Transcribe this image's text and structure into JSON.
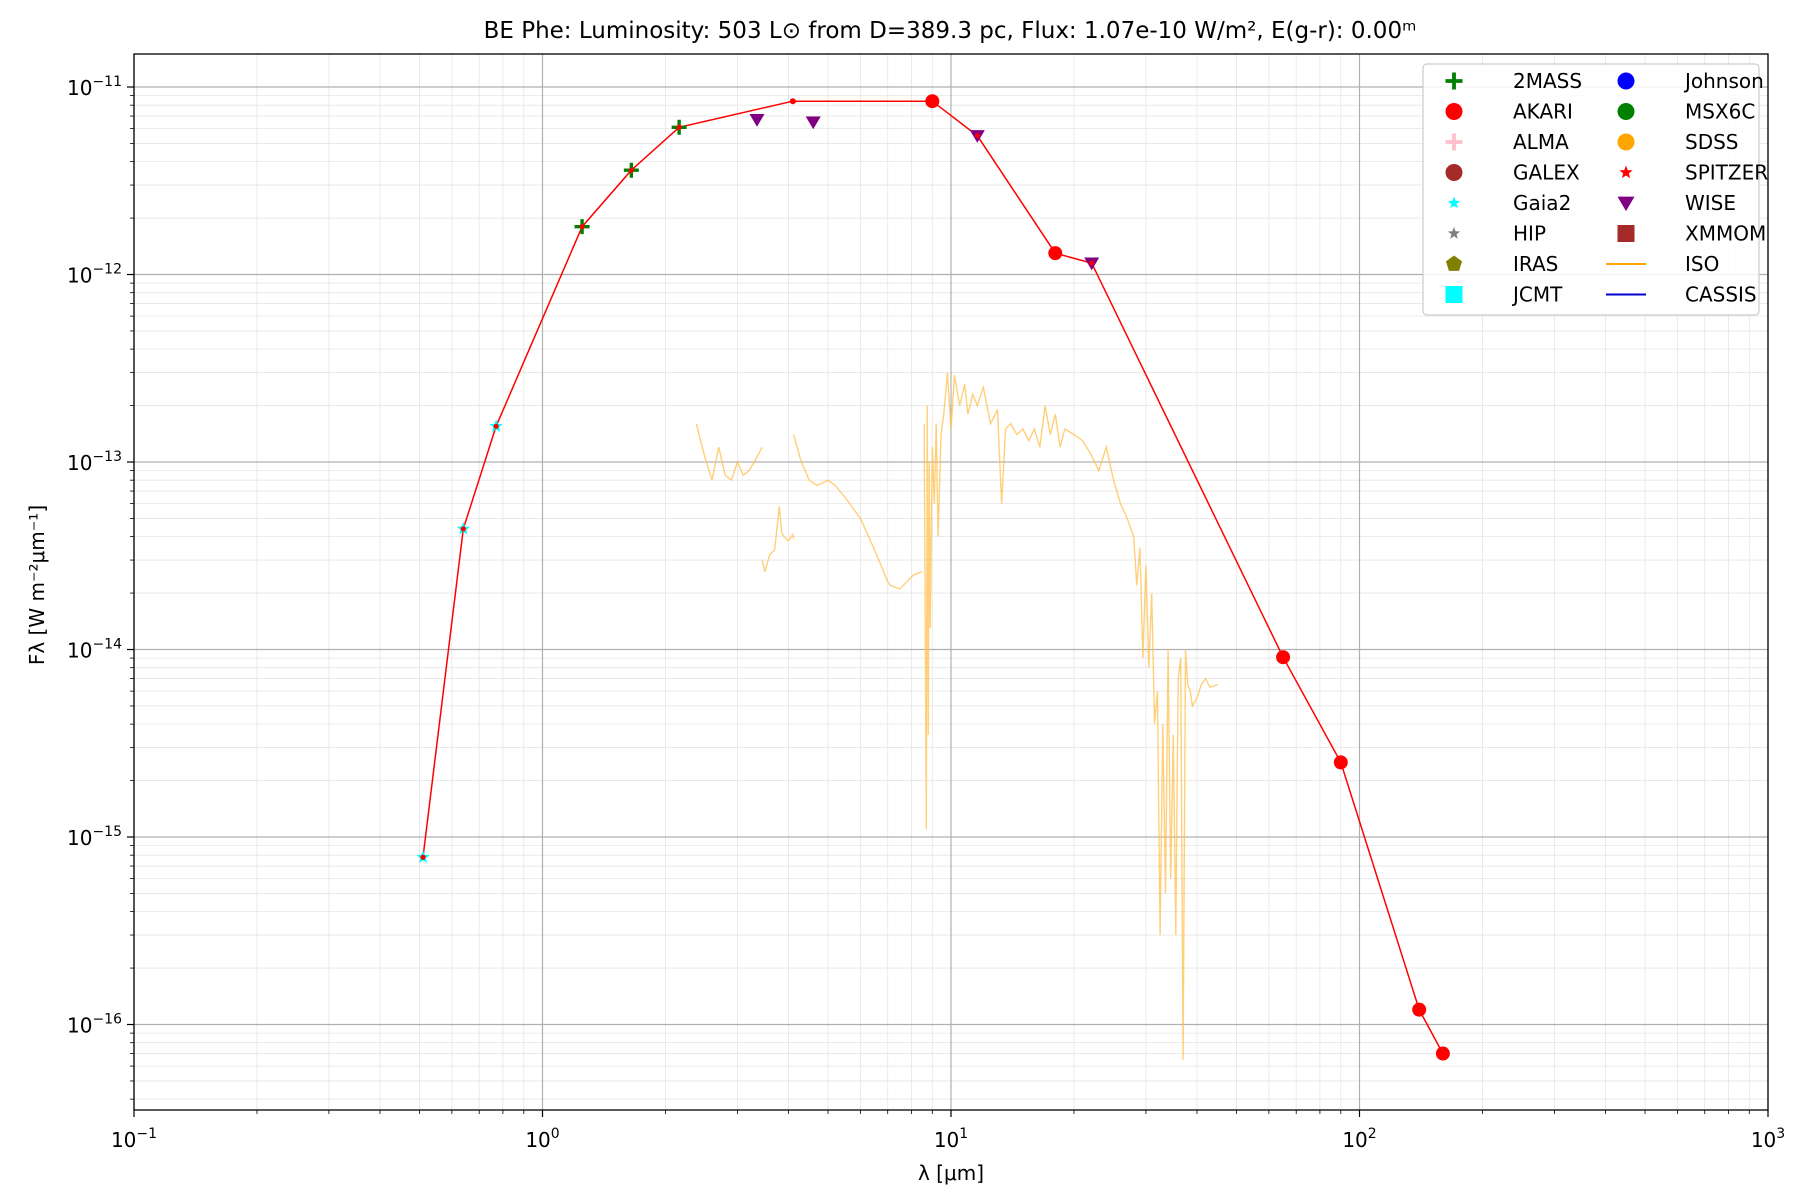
{
  "chart_data": {
    "type": "scatter",
    "title": "BE Phe:  Luminosity: 503 L⊙ from D=389.3 pc, Flux: 1.07e-10 W/m², E(g-r): 0.00ᵐ",
    "xlabel": "λ [μm]",
    "ylabel": "Fλ [W m⁻²μm⁻¹]",
    "xscale": "log",
    "yscale": "log",
    "xlim": [
      0.1,
      1000
    ],
    "ylim": [
      3.5e-17,
      1.5e-11
    ],
    "grid": true,
    "legend_position": "top-right",
    "x_ticks": [
      {
        "value": 0.1,
        "base": "10",
        "exp": "−1"
      },
      {
        "value": 1,
        "base": "10",
        "exp": "0"
      },
      {
        "value": 10,
        "base": "10",
        "exp": "1"
      },
      {
        "value": 100,
        "base": "10",
        "exp": "2"
      },
      {
        "value": 1000,
        "base": "10",
        "exp": "3"
      }
    ],
    "y_ticks": [
      {
        "value": 1e-16,
        "base": "10",
        "exp": "−16"
      },
      {
        "value": 1e-15,
        "base": "10",
        "exp": "−15"
      },
      {
        "value": 1e-14,
        "base": "10",
        "exp": "−14"
      },
      {
        "value": 1e-13,
        "base": "10",
        "exp": "−13"
      },
      {
        "value": 1e-12,
        "base": "10",
        "exp": "−12"
      },
      {
        "value": 1e-11,
        "base": "10",
        "exp": "−11"
      }
    ],
    "sed_line": {
      "color": "#ff0000",
      "x": [
        0.51,
        0.64,
        0.77,
        1.25,
        1.65,
        2.16,
        4.1,
        9.0,
        11.6,
        18.0,
        22.1,
        65.0,
        90.0,
        140.0,
        160.0
      ],
      "y": [
        7.8e-16,
        4.4e-14,
        1.55e-13,
        1.8e-12,
        3.6e-12,
        6.1e-12,
        8.4e-12,
        8.4e-12,
        5.5e-12,
        1.3e-12,
        1.15e-12,
        9.1e-15,
        2.5e-15,
        1.2e-16,
        7e-17
      ]
    },
    "photometry": [
      {
        "survey": "Gaia2",
        "x": [
          0.51,
          0.64,
          0.77
        ],
        "y": [
          7.8e-16,
          4.4e-14,
          1.55e-13
        ]
      },
      {
        "survey": "2MASS",
        "x": [
          1.25,
          1.65,
          2.16
        ],
        "y": [
          1.8e-12,
          3.6e-12,
          6.1e-12
        ]
      },
      {
        "survey": "WISE",
        "x": [
          3.35,
          4.6,
          11.6,
          22.1
        ],
        "y": [
          6.7e-12,
          6.5e-12,
          5.5e-12,
          1.15e-12
        ]
      },
      {
        "survey": "AKARI",
        "x": [
          9.0,
          18.0,
          65.0,
          90.0,
          140.0,
          160.0
        ],
        "y": [
          8.4e-12,
          1.3e-12,
          9.1e-15,
          2.5e-15,
          1.2e-16,
          7e-17
        ]
      },
      {
        "survey": "other",
        "x": [
          4.1
        ],
        "y": [
          8.4e-12
        ]
      }
    ],
    "iso_spectrum": {
      "color": "#ffc04d",
      "segments": [
        {
          "x": [
            2.38,
            2.5,
            2.6,
            2.7,
            2.8,
            2.9,
            3.0,
            3.1,
            3.2,
            3.3,
            3.45
          ],
          "y": [
            1.6e-13,
            1.05e-13,
            8e-14,
            1.2e-13,
            8.5e-14,
            8e-14,
            1e-13,
            8.5e-14,
            9e-14,
            1e-13,
            1.2e-13
          ]
        },
        {
          "x": [
            3.45,
            3.5,
            3.6,
            3.7,
            3.8,
            3.85,
            3.9,
            4.0,
            4.1,
            4.12
          ],
          "y": [
            3e-14,
            2.6e-14,
            3.2e-14,
            3.4e-14,
            5.8e-14,
            4.2e-14,
            4e-14,
            3.8e-14,
            4.1e-14,
            3.9e-14
          ]
        },
        {
          "x": [
            4.12,
            4.3,
            4.5,
            4.7,
            5.0,
            5.2,
            5.5,
            6.0,
            6.5,
            7.0,
            7.1,
            7.5,
            7.8,
            8.1,
            8.5
          ],
          "y": [
            1.4e-13,
            1e-13,
            8e-14,
            7.5e-14,
            8e-14,
            7.5e-14,
            6.5e-14,
            5e-14,
            3.4e-14,
            2.3e-14,
            2.2e-14,
            2.1e-14,
            2.3e-14,
            2.5e-14,
            2.6e-14
          ]
        },
        {
          "x": [
            8.6,
            8.7,
            8.75,
            8.8,
            8.85,
            8.9,
            9.0,
            9.1,
            9.2,
            9.3,
            9.45,
            9.6,
            9.8,
            10.0,
            10.2,
            10.5,
            10.8,
            11.0,
            11.3,
            11.6,
            12.0,
            12.5,
            13.0,
            13.3,
            13.6,
            14.0,
            14.5,
            15.0,
            15.5,
            16.0,
            16.5,
            17.0,
            17.5,
            18.0,
            18.5,
            19.0,
            20.0,
            21.0,
            22.0,
            23.0,
            24.0,
            25.0,
            26.0,
            27.0,
            28.0,
            28.5,
            29.0,
            29.5,
            30.0,
            30.5,
            31.0,
            31.5,
            32.0,
            32.5,
            33.0,
            33.5,
            34.0,
            34.5,
            35.0,
            35.5,
            36.0,
            36.5,
            37.0,
            37.5,
            38.0,
            38.5,
            39.0,
            40.0,
            41.0,
            42.0,
            43.0,
            44.0,
            45.0
          ],
          "y": [
            1.6e-13,
            1.1e-15,
            2e-13,
            3.5e-15,
            1e-13,
            1.3e-14,
            1.2e-13,
            6e-14,
            1.6e-13,
            4e-14,
            1.4e-13,
            1.8e-13,
            3e-13,
            1.5e-13,
            2.9e-13,
            2e-13,
            2.6e-13,
            1.8e-13,
            2.3e-13,
            2e-13,
            2.5e-13,
            1.6e-13,
            1.9e-13,
            6e-14,
            1.5e-13,
            1.6e-13,
            1.4e-13,
            1.5e-13,
            1.3e-13,
            1.5e-13,
            1.2e-13,
            2e-13,
            1.4e-13,
            1.8e-13,
            1.2e-13,
            1.5e-13,
            1.4e-13,
            1.3e-13,
            1.1e-13,
            9e-14,
            1.2e-13,
            8e-14,
            6e-14,
            5e-14,
            4e-14,
            2.2e-14,
            3.5e-14,
            9e-15,
            2.8e-14,
            8e-15,
            2e-14,
            4e-15,
            6e-15,
            3e-16,
            4e-15,
            5e-16,
            1e-14,
            6e-16,
            3.5e-15,
            3e-16,
            7e-15,
            9e-15,
            6.5e-17,
            1e-14,
            6.5e-15,
            6e-15,
            5e-15,
            5.5e-15,
            6.5e-15,
            7e-15,
            6.3e-15,
            6.4e-15,
            6.5e-15
          ]
        }
      ]
    },
    "legend": [
      {
        "label": "2MASS",
        "marker": "plus",
        "color": "#008000"
      },
      {
        "label": "AKARI",
        "marker": "circle",
        "color": "#ff0000"
      },
      {
        "label": "ALMA",
        "marker": "plus",
        "color": "#ffc0cb"
      },
      {
        "label": "GALEX",
        "marker": "circle",
        "color": "#a52a2a"
      },
      {
        "label": "Gaia2",
        "marker": "star",
        "color": "#00ffff"
      },
      {
        "label": "HIP",
        "marker": "star",
        "color": "#808080"
      },
      {
        "label": "IRAS",
        "marker": "pentagon",
        "color": "#808000"
      },
      {
        "label": "JCMT",
        "marker": "square",
        "color": "#00ffff"
      },
      {
        "label": "Johnson",
        "marker": "circle",
        "color": "#0000ff"
      },
      {
        "label": "MSX6C",
        "marker": "circle",
        "color": "#008000"
      },
      {
        "label": "SDSS",
        "marker": "circle",
        "color": "#ffa500"
      },
      {
        "label": "SPITZER",
        "marker": "star",
        "color": "#ff0000"
      },
      {
        "label": "WISE",
        "marker": "triangle-down",
        "color": "#800080"
      },
      {
        "label": "XMMOM",
        "marker": "square",
        "color": "#a52a2a"
      },
      {
        "label": "ISO",
        "marker": "line",
        "color": "#ffa500"
      },
      {
        "label": "CASSIS",
        "marker": "line",
        "color": "#0000cd"
      }
    ]
  }
}
